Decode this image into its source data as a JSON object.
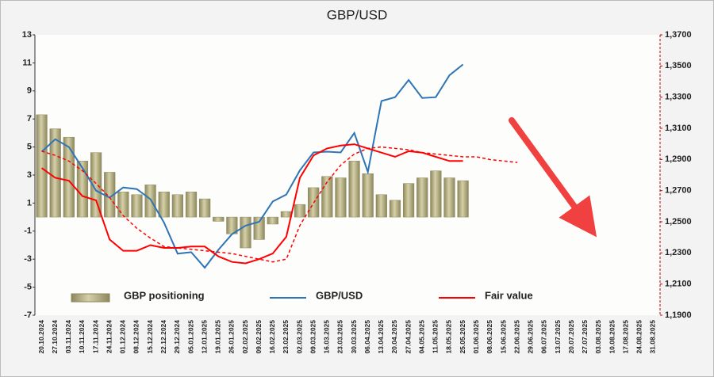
{
  "chart_data": {
    "type": "bar",
    "title": "GBP/USD",
    "categories": [
      "20.10.2024",
      "27.10.2024",
      "03.11.2024",
      "10.11.2024",
      "17.11.2024",
      "24.11.2024",
      "01.12.2024",
      "08.12.2024",
      "15.12.2024",
      "22.12.2024",
      "29.12.2024",
      "05.01.2025",
      "12.01.2025",
      "19.01.2025",
      "26.01.2025",
      "02.02.2025",
      "09.02.2025",
      "16.02.2025",
      "23.02.2025",
      "02.03.2025",
      "09.03.2025",
      "16.03.2025",
      "23.03.2025",
      "30.03.2025",
      "06.04.2025",
      "13.04.2025",
      "20.04.2025",
      "27.04.2025",
      "04.05.2025",
      "11.05.2025",
      "18.05.2025",
      "25.05.2025",
      "01.06.2025",
      "08.06.2025",
      "15.06.2025",
      "22.06.2025",
      "29.06.2025",
      "06.07.2025",
      "13.07.2025",
      "20.07.2025",
      "27.07.2025",
      "03.08.2025",
      "10.08.2025",
      "17.08.2025",
      "24.08.2025",
      "31.08.2025"
    ],
    "series": [
      {
        "name": "GBP positioning",
        "type": "bar",
        "color": "#b5ae86",
        "axis": "y",
        "values": [
          7.3,
          6.3,
          5.7,
          4.0,
          4.6,
          3.2,
          1.8,
          1.6,
          2.3,
          1.8,
          1.6,
          1.8,
          1.3,
          -0.3,
          -1.2,
          -2.2,
          -1.6,
          -0.5,
          0.4,
          0.9,
          2.1,
          2.9,
          2.8,
          4.0,
          3.1,
          1.6,
          1.2,
          2.4,
          2.8,
          3.3,
          2.8,
          2.6,
          null,
          null,
          null,
          null,
          null,
          null,
          null,
          null,
          null,
          null,
          null,
          null,
          null,
          null
        ]
      },
      {
        "name": "GBP/USD",
        "type": "line",
        "color": "#2e75b6",
        "axis": "y2",
        "values": [
          1.295,
          1.303,
          1.298,
          1.2845,
          1.27,
          1.2655,
          1.272,
          1.271,
          1.2645,
          1.2495,
          1.2295,
          1.2305,
          1.2205,
          1.232,
          1.242,
          1.2475,
          1.25,
          1.263,
          1.2675,
          1.283,
          1.2945,
          1.295,
          1.2945,
          1.307,
          1.282,
          1.3275,
          1.33,
          1.341,
          1.3295,
          1.33,
          1.344,
          1.351,
          null,
          null,
          null,
          null,
          null,
          null,
          null,
          null,
          null,
          null,
          null,
          null,
          null,
          null
        ]
      },
      {
        "name": "Fair value",
        "type": "line",
        "color": "#ff0000",
        "axis": "y",
        "values": [
          3.5,
          2.8,
          2.6,
          1.5,
          1.2,
          -1.6,
          -2.4,
          -2.4,
          -2.0,
          -2.2,
          -2.2,
          -2.1,
          -2.1,
          -2.8,
          -3.2,
          -3.3,
          -3.0,
          -2.6,
          -1.4,
          2.8,
          4.4,
          4.9,
          5.1,
          5.2,
          4.9,
          4.6,
          4.3,
          4.7,
          4.6,
          4.3,
          4.0,
          4.0,
          null,
          null,
          null,
          null,
          null,
          null,
          null,
          null,
          null,
          null,
          null,
          null,
          null,
          null
        ]
      },
      {
        "type": "line",
        "style": "dashed",
        "color": "#ff0000",
        "axis": "y",
        "values": [
          4.7,
          4.4,
          4.0,
          3.3,
          2.4,
          1.4,
          0.1,
          -0.8,
          -1.5,
          -2.1,
          -2.2,
          -2.3,
          -2.4,
          -2.5,
          -2.6,
          -2.8,
          -3.0,
          -3.2,
          -3.0,
          -0.6,
          1.0,
          2.5,
          3.7,
          4.5,
          4.9,
          5.0,
          4.9,
          4.8,
          4.6,
          4.5,
          4.4,
          4.3,
          4.3,
          4.1,
          4.0,
          3.9,
          null,
          null,
          null,
          null,
          null,
          null,
          null,
          null,
          null,
          null
        ]
      }
    ],
    "ylim": [
      -7,
      13
    ],
    "yticks": [
      -7,
      -5,
      -3,
      -1,
      1,
      3,
      5,
      7,
      9,
      11,
      13
    ],
    "y2lim": [
      1.19,
      1.37
    ],
    "y2ticks": [
      {
        "value": 1.19,
        "label": "1,1900"
      },
      {
        "value": 1.21,
        "label": "1,2100"
      },
      {
        "value": 1.23,
        "label": "1,2300"
      },
      {
        "value": 1.25,
        "label": "1,2500"
      },
      {
        "value": 1.27,
        "label": "1,2700"
      },
      {
        "value": 1.29,
        "label": "1,2900"
      },
      {
        "value": 1.31,
        "label": "1,3100"
      },
      {
        "value": 1.33,
        "label": "1,3300"
      },
      {
        "value": 1.35,
        "label": "1,3500"
      },
      {
        "value": 1.37,
        "label": "1,3700"
      }
    ],
    "legend": "bottom"
  }
}
